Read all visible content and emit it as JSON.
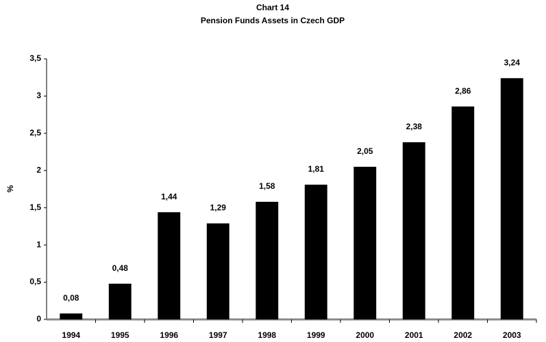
{
  "chart_data": {
    "type": "bar",
    "title": "Chart 14",
    "subtitle": "Pension Funds Assets in Czech GDP",
    "y_label": "%",
    "categories": [
      "1994",
      "1995",
      "1996",
      "1997",
      "1998",
      "1999",
      "2000",
      "2001",
      "2002",
      "2003"
    ],
    "values": [
      0.08,
      0.48,
      1.44,
      1.29,
      1.58,
      1.81,
      2.05,
      2.38,
      2.86,
      3.24
    ],
    "value_labels": [
      "0,08",
      "0,48",
      "1,44",
      "1,29",
      "1,58",
      "1,81",
      "2,05",
      "2,38",
      "2,86",
      "3,24"
    ],
    "color": "#000000",
    "ylim": [
      0,
      3.5
    ],
    "yticks": [
      0,
      {
        "value": 0.5,
        "label": "0,5"
      },
      1,
      {
        "value": 1.5,
        "label": "1,5"
      },
      2,
      {
        "value": 2.5,
        "label": "2,5"
      },
      3,
      {
        "value": 3.5,
        "label": "3,5"
      }
    ],
    "grid": false
  }
}
